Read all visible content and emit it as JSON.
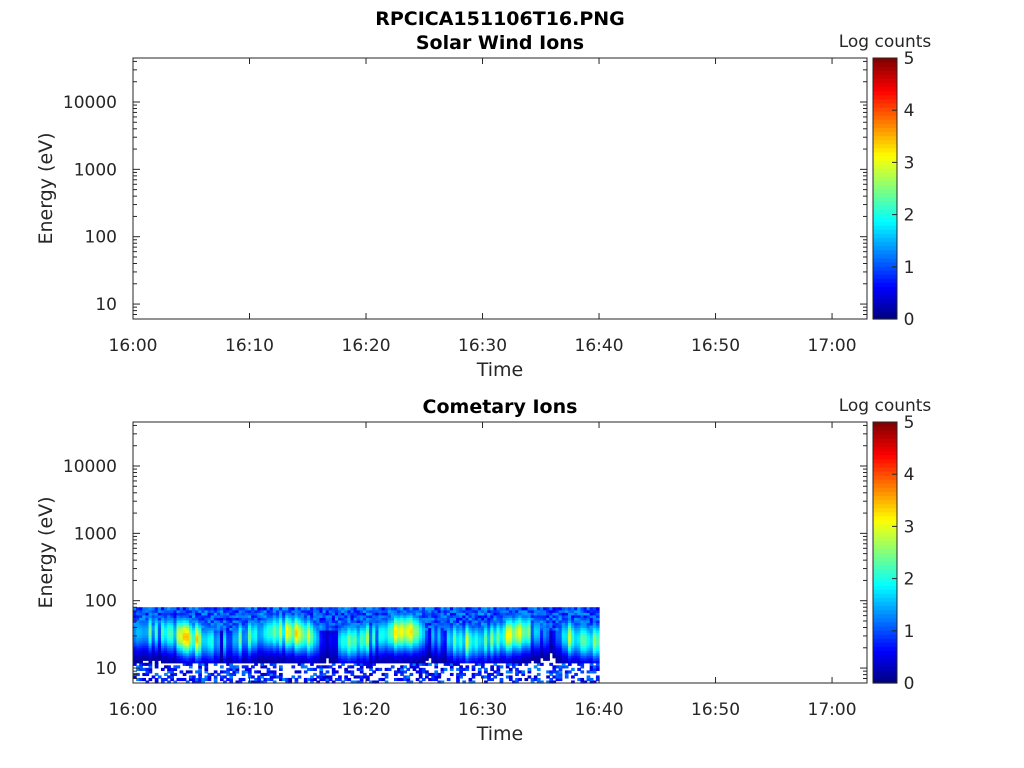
{
  "figure": {
    "title": "RPCICA151106T16.PNG"
  },
  "chart_data": [
    {
      "type": "heatmap",
      "title": "Solar Wind Ions",
      "xlabel": "Time",
      "ylabel": "Energy (eV)",
      "y_scale": "log",
      "xlim": [
        "16:00",
        "17:03"
      ],
      "ylim": [
        6,
        45000
      ],
      "xticks": [
        "16:00",
        "16:10",
        "16:20",
        "16:30",
        "16:40",
        "16:50",
        "17:00"
      ],
      "yticks": [
        "10",
        "100",
        "1000",
        "10000"
      ],
      "colorbar": {
        "label": "Log counts",
        "ticks": [
          "0",
          "1",
          "2",
          "3",
          "4",
          "5"
        ],
        "range": [
          0,
          5
        ],
        "colormap": "jet"
      },
      "data_coverage": null,
      "grid": false
    },
    {
      "type": "heatmap",
      "title": "Cometary Ions",
      "xlabel": "Time",
      "ylabel": "Energy (eV)",
      "y_scale": "log",
      "xlim": [
        "16:00",
        "17:03"
      ],
      "ylim": [
        6,
        45000
      ],
      "xticks": [
        "16:00",
        "16:10",
        "16:20",
        "16:30",
        "16:40",
        "16:50",
        "17:00"
      ],
      "yticks": [
        "10",
        "100",
        "1000",
        "10000"
      ],
      "colorbar": {
        "label": "Log counts",
        "ticks": [
          "0",
          "1",
          "2",
          "3",
          "4",
          "5"
        ],
        "range": [
          0,
          5
        ],
        "colormap": "jet"
      },
      "data_coverage": {
        "time": [
          "16:00",
          "16:40"
        ],
        "energy_eV": [
          6,
          80
        ]
      },
      "peak_energy_eV": 30,
      "peak_log_counts": 3,
      "grid": false
    }
  ],
  "colors": {
    "axis": "#262626",
    "background": "#ffffff"
  }
}
